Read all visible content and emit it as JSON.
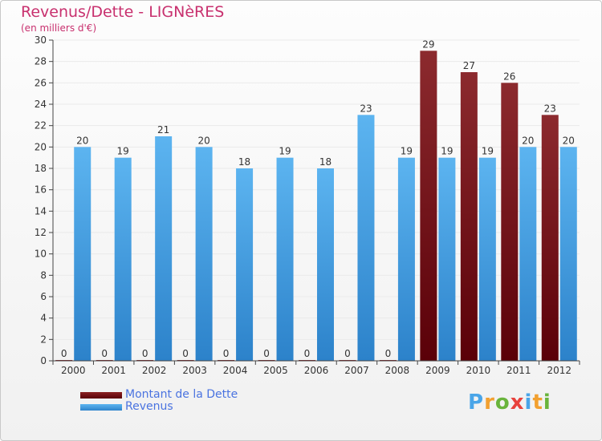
{
  "title": "Revenus/Dette - LIGNèRES",
  "subtitle": "(en milliers d'€)",
  "logo": {
    "text": "Proxiti",
    "letter_colors": [
      "#4aa5e8",
      "#f2a030",
      "#69b43c",
      "#e8423c",
      "#4aa5e8",
      "#f2a030",
      "#69b43c"
    ]
  },
  "colors": {
    "dette": "#6b0a12",
    "revenus": "#4aa8ec",
    "axis": "#444444",
    "grid": "#eaeaea"
  },
  "chart_data": {
    "type": "bar",
    "title": "Revenus/Dette - LIGNèRES",
    "subtitle": "(en milliers d'€)",
    "categories": [
      "2000",
      "2001",
      "2002",
      "2003",
      "2004",
      "2005",
      "2006",
      "2007",
      "2008",
      "2009",
      "2010",
      "2011",
      "2012"
    ],
    "series": [
      {
        "name": "Montant de la Dette",
        "color": "#6b0a12",
        "values": [
          0,
          0,
          0,
          0,
          0,
          0,
          0,
          0,
          0,
          29,
          27,
          26,
          23
        ]
      },
      {
        "name": "Revenus",
        "color": "#4aa8ec",
        "values": [
          20,
          19,
          21,
          20,
          18,
          19,
          18,
          23,
          19,
          19,
          19,
          20,
          20
        ]
      }
    ],
    "ylim": [
      0,
      30
    ],
    "yticks": [
      0,
      2,
      4,
      6,
      8,
      10,
      12,
      14,
      16,
      18,
      20,
      22,
      24,
      26,
      28,
      30
    ],
    "grid": true,
    "legend_position": "bottom-left",
    "data_labels": true
  }
}
